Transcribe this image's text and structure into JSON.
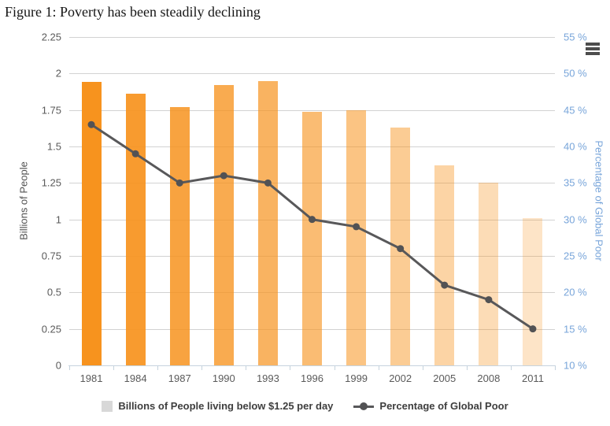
{
  "title": "Figure 1: Poverty has been steadily declining",
  "menu_icon": "hamburger-menu-icon",
  "chart_data": {
    "type": "bar+line combo",
    "title": "Figure 1: Poverty has been steadily declining",
    "categories": [
      "1981",
      "1984",
      "1987",
      "1990",
      "1993",
      "1996",
      "1999",
      "2002",
      "2005",
      "2008",
      "2011"
    ],
    "series": [
      {
        "name": "Billions of People living below $1.25 per day",
        "type": "bar",
        "axis": "left",
        "values": [
          1.94,
          1.86,
          1.77,
          1.92,
          1.95,
          1.74,
          1.75,
          1.63,
          1.37,
          1.25,
          1.01
        ]
      },
      {
        "name": "Percentage of Global Poor",
        "type": "line",
        "axis": "right",
        "values": [
          43,
          39,
          35,
          36,
          35,
          30,
          29,
          26,
          21,
          19,
          15
        ]
      }
    ],
    "left_axis": {
      "title": "Billions of People",
      "min": 0,
      "max": 2.25,
      "tick_interval": 0.25,
      "tick_labels_top_to_bottom": [
        "2.25",
        "2",
        "1.75",
        "1.5",
        "1.25",
        "1",
        "0.75",
        "0.5",
        "0.25",
        "0"
      ]
    },
    "right_axis": {
      "title": "Percentage of Global Poor",
      "min": 10,
      "max": 55,
      "tick_interval": 5,
      "tick_labels_top_to_bottom": [
        "55 %",
        "50 %",
        "45 %",
        "40 %",
        "35 %",
        "30 %",
        "25 %",
        "20 %",
        "15 %",
        "10 %"
      ]
    },
    "grid": true,
    "legend_position": "bottom",
    "colors": {
      "bar_base_rgb": "247,147,30",
      "bar_alphas": [
        1,
        0.925,
        0.85,
        0.775,
        0.7,
        0.625,
        0.55,
        0.475,
        0.4,
        0.325,
        0.25
      ],
      "line": "#58585a",
      "marker": "#525254",
      "grid": "#d2d2d2",
      "x_axis": "#c6d3de",
      "axis_text": "#5a5a5a",
      "left_title_text": "#4f4f4f",
      "right_axis_text": "#78a5da",
      "legend_text": "#3e3e3e",
      "legend_square": "#d8d8d8"
    }
  },
  "legend": {
    "items": [
      {
        "label": "Billions of People living below $1.25 per day",
        "marker": "square"
      },
      {
        "label": "Percentage of Global Poor",
        "marker": "line-dot"
      }
    ]
  }
}
